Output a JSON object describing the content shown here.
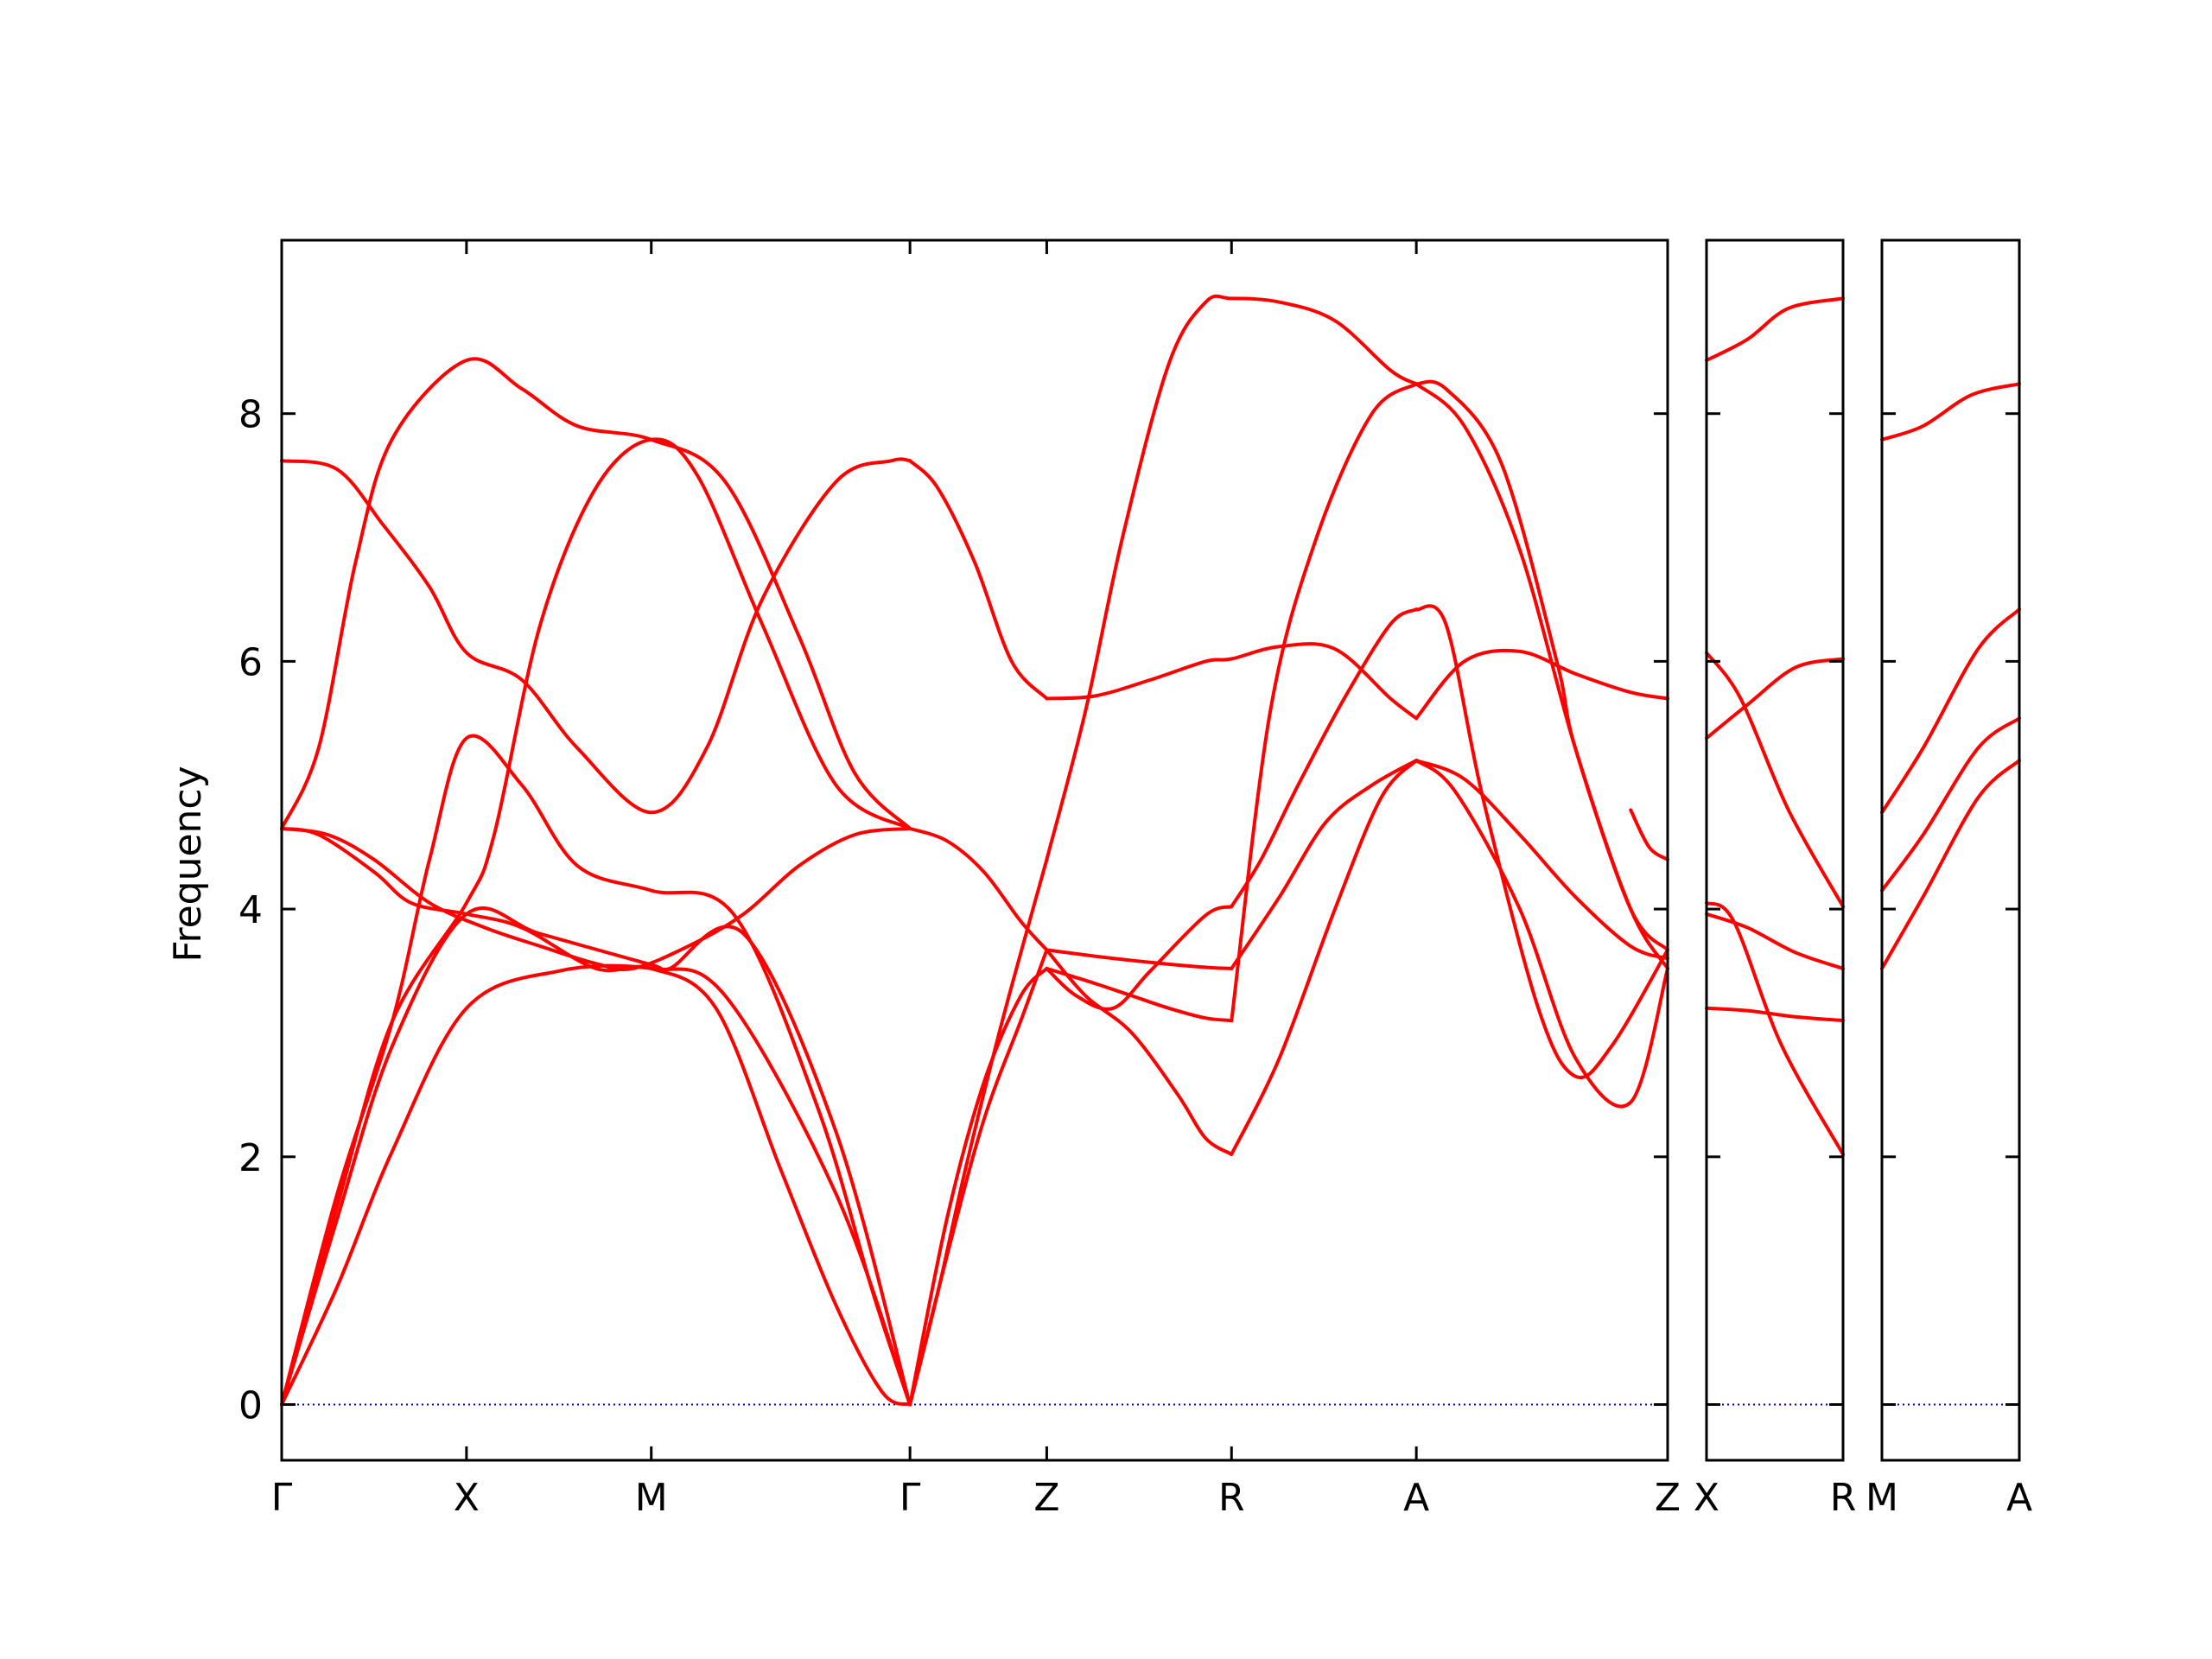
{
  "chart_data": {
    "type": "line",
    "ylabel": "Frequency",
    "ylim": [
      -0.45,
      9.4
    ],
    "yticks": [
      0,
      2,
      4,
      6,
      8
    ],
    "colors": {
      "band": "#ff0000",
      "zero_line": "#0000cc"
    },
    "grid": false,
    "legend": "none",
    "panels": [
      {
        "labels": [
          "Γ",
          "X",
          "M",
          "Γ",
          "Z",
          "R",
          "A",
          "Z"
        ],
        "label_positions": [
          0,
          1,
          2,
          3.4,
          4.14,
          5.14,
          6.14,
          7.5
        ],
        "series": [
          {
            "x": [
              0,
              0.3,
              0.6,
              1,
              1.5,
              2,
              2.4,
              3,
              3.4
            ],
            "values": [
              0,
              0.95,
              2.05,
              3.2,
              3.5,
              3.52,
              3.3,
              1.7,
              0
            ]
          },
          {
            "x": [
              0,
              0.3,
              0.6,
              1,
              1.4,
              2,
              2.1,
              2.5,
              3,
              3.4
            ],
            "values": [
              0,
              1.5,
              2.9,
              3.96,
              3.8,
              3.55,
              3.52,
              3.8,
              2.2,
              0
            ]
          },
          {
            "x": [
              0,
              0.3,
              0.6,
              1,
              1.15,
              1.4,
              1.7,
              2,
              2.25,
              2.6,
              3,
              3.4
            ],
            "values": [
              0,
              1.6,
              3.1,
              4.05,
              4.6,
              6.3,
              7.4,
              7.79,
              7.5,
              6.3,
              5.0,
              4.65
            ]
          },
          {
            "x": [
              0,
              0.3,
              0.6,
              0.8,
              1,
              1.3,
              1.6,
              2,
              2.45,
              2.9,
              3.2,
              3.4
            ],
            "values": [
              0,
              1.7,
              3.1,
              4.4,
              5.38,
              5.0,
              4.35,
              4.15,
              3.95,
              2.4,
              0.9,
              0
            ]
          },
          {
            "x": [
              0,
              0.2,
              0.4,
              0.6,
              1,
              1.3,
              1.6,
              2,
              2.4,
              2.8,
              3.1,
              3.4
            ],
            "values": [
              4.65,
              5.3,
              6.8,
              7.8,
              8.43,
              8.2,
              7.9,
              7.79,
              7.45,
              6.2,
              5.1,
              4.65
            ]
          },
          {
            "x": [
              0,
              0.2,
              0.5,
              0.7,
              1,
              1.3,
              1.7,
              2,
              2.35,
              2.7,
              3,
              3.25,
              3.4
            ],
            "values": [
              4.65,
              4.6,
              4.3,
              4.05,
              3.96,
              3.85,
              3.52,
              3.52,
              3.2,
              1.9,
              0.8,
              0.1,
              0
            ]
          },
          {
            "x": [
              0,
              0.3,
              0.55,
              0.8,
              1,
              1.3,
              1.6,
              2,
              2.3,
              2.6,
              3,
              3.3,
              3.4
            ],
            "values": [
              7.62,
              7.55,
              7.1,
              6.6,
              6.07,
              5.85,
              5.3,
              4.78,
              5.3,
              6.5,
              7.45,
              7.62,
              7.62
            ]
          },
          {
            "x": [
              0,
              0.25,
              0.5,
              0.8,
              1.1,
              1.4,
              1.7,
              1.9,
              2.2,
              2.5,
              2.8,
              3.1,
              3.4
            ],
            "values": [
              4.65,
              4.6,
              4.4,
              4.05,
              3.85,
              3.7,
              3.56,
              3.52,
              3.7,
              3.96,
              4.35,
              4.6,
              4.65
            ]
          },
          {
            "x": [
              3.4,
              3.55,
              3.7,
              3.9,
              4.14
            ],
            "values": [
              0,
              0.9,
              1.9,
              3.1,
              4.4
            ]
          },
          {
            "x": [
              3.4,
              3.6,
              3.8,
              4.0,
              4.14
            ],
            "values": [
              0,
              1.5,
              2.6,
              3.3,
              3.52
            ]
          },
          {
            "x": [
              3.4,
              3.6,
              3.8,
              4.0,
              4.14
            ],
            "values": [
              0,
              1.2,
              2.3,
              3.1,
              3.67
            ]
          },
          {
            "x": [
              3.4,
              3.6,
              3.8,
              4.0,
              4.14
            ],
            "values": [
              4.65,
              4.55,
              4.3,
              3.9,
              3.67
            ]
          },
          {
            "x": [
              3.4,
              3.55,
              3.75,
              3.95,
              4.14
            ],
            "values": [
              7.62,
              7.4,
              6.8,
              6.0,
              5.7
            ]
          },
          {
            "x": [
              4.14,
              4.4,
              4.7,
              5.0,
              5.14,
              5.4,
              5.7,
              6.0,
              6.14
            ],
            "values": [
              5.7,
              5.72,
              5.85,
              6.0,
              6.02,
              6.12,
              6.1,
              5.7,
              5.54
            ]
          },
          {
            "x": [
              4.14,
              4.35,
              4.55,
              4.8,
              5.0,
              5.14,
              5.4,
              5.7,
              6.0,
              6.14
            ],
            "values": [
              4.4,
              5.6,
              7.0,
              8.4,
              8.9,
              8.93,
              8.9,
              8.75,
              8.35,
              8.24
            ]
          },
          {
            "x": [
              4.14,
              4.4,
              4.7,
              5.0,
              5.14
            ],
            "values": [
              3.67,
              3.62,
              3.57,
              3.53,
              3.52
            ]
          },
          {
            "x": [
              4.14,
              4.4,
              4.6,
              4.8,
              5.0,
              5.14
            ],
            "values": [
              3.52,
              3.4,
              3.3,
              3.2,
              3.12,
              3.1
            ]
          },
          {
            "x": [
              4.14,
              4.3,
              4.5,
              4.7,
              5.0,
              5.14
            ],
            "values": [
              3.52,
              3.3,
              3.2,
              3.5,
              3.95,
              4.02
            ]
          },
          {
            "x": [
              4.14,
              4.35,
              4.6,
              4.85,
              5.0,
              5.14
            ],
            "values": [
              3.67,
              3.3,
              3.0,
              2.5,
              2.15,
              2.02
            ]
          },
          {
            "x": [
              5.14,
              5.4,
              5.65,
              5.9,
              6.14
            ],
            "values": [
              3.52,
              4.1,
              4.7,
              5.0,
              5.2
            ]
          },
          {
            "x": [
              5.14,
              5.3,
              5.5,
              5.75,
              6.0,
              6.14
            ],
            "values": [
              4.02,
              4.4,
              5.0,
              5.7,
              6.3,
              6.42
            ]
          },
          {
            "x": [
              5.14,
              5.35,
              5.6,
              5.9,
              6.14
            ],
            "values": [
              3.1,
              5.6,
              7.0,
              8.0,
              8.24
            ]
          },
          {
            "x": [
              5.14,
              5.4,
              5.7,
              5.95,
              6.14
            ],
            "values": [
              2.02,
              2.8,
              4.0,
              4.9,
              5.2
            ]
          },
          {
            "x": [
              6.14,
              6.4,
              6.7,
              7.0,
              7.3,
              7.5
            ],
            "values": [
              5.54,
              6.0,
              6.08,
              5.9,
              5.75,
              5.7
            ]
          },
          {
            "x": [
              6.14,
              6.4,
              6.7,
              7.0,
              7.3,
              7.5
            ],
            "values": [
              8.24,
              7.9,
              6.9,
              5.3,
              4.0,
              3.52
            ]
          },
          {
            "x": [
              6.14,
              6.3,
              6.6,
              6.9,
              7.0,
              7.3,
              7.5
            ],
            "values": [
              8.24,
              8.2,
              7.6,
              6.0,
              5.3,
              4.0,
              3.67
            ]
          },
          {
            "x": [
              6.14,
              6.3,
              6.5,
              6.8,
              7.0,
              7.2,
              7.5
            ],
            "values": [
              6.42,
              6.3,
              4.9,
              3.2,
              2.65,
              2.9,
              3.67
            ]
          },
          {
            "x": [
              6.14,
              6.35,
              6.7,
              7.0,
              7.3,
              7.5
            ],
            "values": [
              5.2,
              4.95,
              4.0,
              2.8,
              2.44,
              3.52
            ]
          },
          {
            "x": [
              6.14,
              6.4,
              6.7,
              7.0,
              7.3,
              7.5
            ],
            "values": [
              5.2,
              5.05,
              4.6,
              4.1,
              3.7,
              3.6
            ]
          },
          {
            "x": [
              7.3,
              7.4,
              7.5
            ],
            "values": [
              4.8,
              4.5,
              4.4
            ]
          }
        ]
      },
      {
        "labels": [
          "X",
          "R"
        ],
        "label_positions": [
          0,
          1
        ],
        "series": [
          {
            "x": [
              0,
              0.3,
              0.6,
              1
            ],
            "values": [
              8.43,
              8.6,
              8.85,
              8.93
            ]
          },
          {
            "x": [
              0,
              0.25,
              0.6,
              1
            ],
            "values": [
              6.07,
              5.7,
              4.8,
              4.02
            ]
          },
          {
            "x": [
              0,
              0.3,
              0.65,
              1
            ],
            "values": [
              5.38,
              5.65,
              5.95,
              6.02
            ]
          },
          {
            "x": [
              0,
              0.2,
              0.55,
              1
            ],
            "values": [
              4.05,
              3.9,
              2.9,
              2.02
            ]
          },
          {
            "x": [
              0,
              0.3,
              0.65,
              1
            ],
            "values": [
              3.96,
              3.85,
              3.65,
              3.52
            ]
          },
          {
            "x": [
              0,
              0.3,
              0.65,
              1
            ],
            "values": [
              3.2,
              3.18,
              3.13,
              3.1
            ]
          }
        ]
      },
      {
        "labels": [
          "M",
          "A"
        ],
        "label_positions": [
          0,
          1
        ],
        "series": [
          {
            "x": [
              0,
              0.3,
              0.65,
              1
            ],
            "values": [
              7.79,
              7.9,
              8.15,
              8.24
            ]
          },
          {
            "x": [
              0,
              0.3,
              0.7,
              1
            ],
            "values": [
              4.78,
              5.3,
              6.1,
              6.42
            ]
          },
          {
            "x": [
              0,
              0.3,
              0.7,
              1
            ],
            "values": [
              4.15,
              4.6,
              5.3,
              5.54
            ]
          },
          {
            "x": [
              0,
              0.3,
              0.7,
              1
            ],
            "values": [
              3.52,
              4.1,
              4.9,
              5.2
            ]
          }
        ]
      }
    ]
  }
}
